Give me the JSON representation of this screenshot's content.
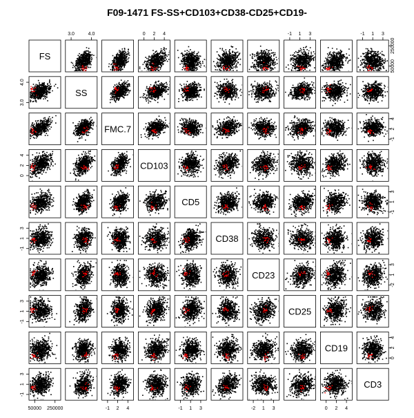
{
  "chart_data": {
    "type": "scatter",
    "title": "F09-1471 FS-SS+CD103+CD38-CD25+CD19-",
    "variables": [
      "FS",
      "SS",
      "FMC.7",
      "CD103",
      "CD5",
      "CD38",
      "CD23",
      "CD25",
      "CD19",
      "CD3"
    ],
    "axis_ticks": {
      "FS": [
        "50000",
        "250000"
      ],
      "SS": [
        "3.0",
        "4.0"
      ],
      "FMC.7": [
        "-1",
        "2",
        "4"
      ],
      "CD103": [
        "0",
        "2",
        "4"
      ],
      "CD5": [
        "-1",
        "1",
        "3"
      ],
      "CD38": [
        "-1",
        "1",
        "3"
      ],
      "CD23": [
        "-2",
        "1",
        "3"
      ],
      "CD25": [
        "-1",
        "1",
        "3"
      ],
      "CD19": [
        "0",
        "2",
        "4"
      ],
      "CD3": [
        "-1",
        "1",
        "3"
      ]
    },
    "tick_placement": {
      "top": [
        "SS",
        "CD103",
        "CD25",
        "CD3"
      ],
      "right": [
        "FS",
        "FMC.7",
        "CD5",
        "CD23",
        "CD19"
      ],
      "bottom": [
        "FS",
        "FMC.7",
        "CD5",
        "CD23",
        "CD19"
      ],
      "left": [
        "SS",
        "CD103",
        "CD38",
        "CD25",
        "CD3"
      ]
    },
    "series": [
      {
        "color": "#000000"
      },
      {
        "color": "#ff0000"
      }
    ],
    "grid": false,
    "legend": "none"
  }
}
